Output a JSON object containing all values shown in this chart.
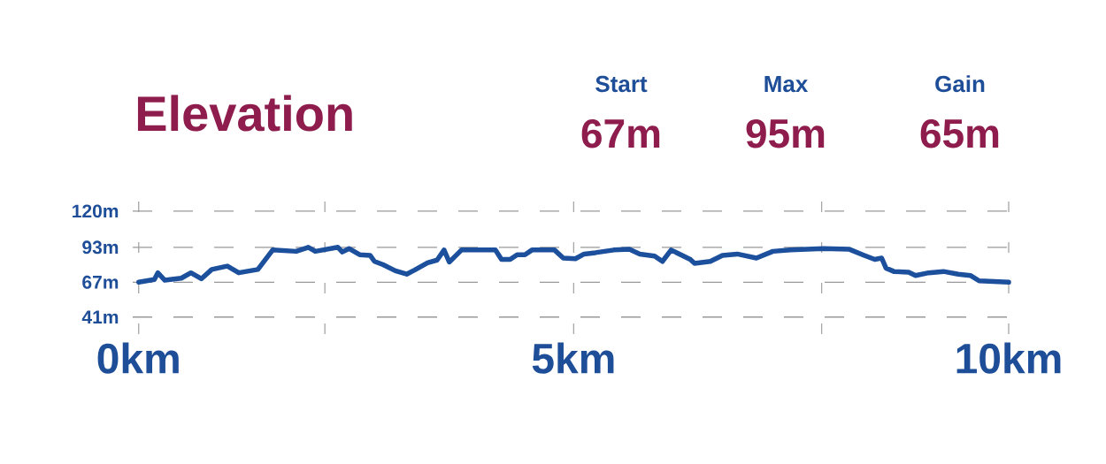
{
  "chart_data": {
    "type": "line",
    "title": "Elevation",
    "annotations": [
      "Start",
      "67m",
      "Max",
      "95m",
      "Gain",
      "65m"
    ],
    "x": [
      0.0,
      0.18,
      0.22,
      0.3,
      0.49,
      0.6,
      0.72,
      0.84,
      1.02,
      1.15,
      1.37,
      1.54,
      1.81,
      1.95,
      2.03,
      2.29,
      2.34,
      2.42,
      2.54,
      2.66,
      2.71,
      2.81,
      2.95,
      3.08,
      3.17,
      3.32,
      3.43,
      3.51,
      3.57,
      3.71,
      4.1,
      4.17,
      4.27,
      4.35,
      4.44,
      4.52,
      4.78,
      4.88,
      5.02,
      5.12,
      5.25,
      5.46,
      5.64,
      5.76,
      5.93,
      6.02,
      6.12,
      6.34,
      6.39,
      6.57,
      6.71,
      6.88,
      7.1,
      7.29,
      7.49,
      7.87,
      8.17,
      8.34,
      8.46,
      8.54,
      8.59,
      8.68,
      8.85,
      8.93,
      9.08,
      9.25,
      9.42,
      9.56,
      9.66,
      10.0
    ],
    "values": [
      67,
      69,
      74,
      68.5,
      70,
      74,
      69.5,
      76.5,
      79,
      74,
      76.5,
      91,
      90,
      93,
      90,
      93,
      89.5,
      92,
      87.5,
      87,
      82.5,
      80,
      75.5,
      73,
      76,
      81.5,
      83.5,
      91,
      82,
      91,
      91,
      84,
      84,
      87.5,
      87.5,
      91,
      91,
      85,
      84.5,
      88,
      89,
      91,
      91.5,
      88,
      86.5,
      82.5,
      91,
      84,
      81,
      82.5,
      87,
      88,
      85,
      90,
      91,
      92,
      91.5,
      87,
      84,
      85,
      77.5,
      75,
      74.5,
      72,
      74,
      75,
      73,
      72,
      68,
      67
    ],
    "color": "#1c4f9c",
    "line_style": "solid",
    "marker": "none",
    "xlim": [
      -0.15,
      10
    ],
    "ylim": [
      27,
      139
    ],
    "xticks": [
      {
        "value": 0,
        "label": "0km"
      },
      {
        "value": 2.14,
        "label": null
      },
      {
        "value": 5,
        "label": "5km"
      },
      {
        "value": 7.85,
        "label": null
      },
      {
        "value": 10,
        "label": "10km"
      }
    ],
    "yticks": [
      {
        "value": 41,
        "label": "41m"
      },
      {
        "value": 67,
        "label": "67m"
      },
      {
        "value": 93,
        "label": "93m"
      },
      {
        "value": 120,
        "label": "120m"
      }
    ],
    "grid": true
  }
}
